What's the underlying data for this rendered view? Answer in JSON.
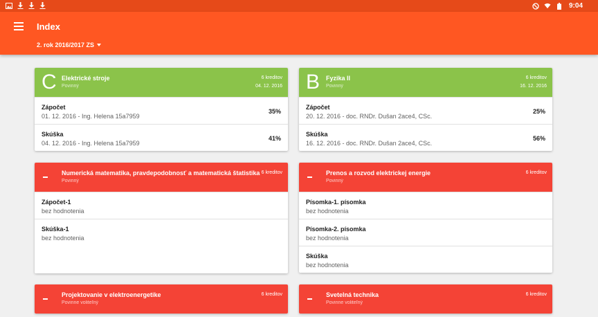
{
  "status": {
    "time": "9:04"
  },
  "app": {
    "title": "Index",
    "semester": "2. rok 2016/2017 ZS"
  },
  "cards": [
    {
      "grade": "C",
      "name": "Elektrické stroje",
      "type": "Povinný",
      "credits": "6 kreditov",
      "date": "04. 12. 2016",
      "rows": [
        {
          "title": "Zápočet",
          "sub": "01. 12. 2016 - Ing. Helena 15a7959",
          "pct": "35%"
        },
        {
          "title": "Skúška",
          "sub": "04. 12. 2016 - Ing. Helena 15a7959",
          "pct": "41%"
        }
      ]
    },
    {
      "grade": "B",
      "name": "Fyzika II",
      "type": "Povinný",
      "credits": "6 kreditov",
      "date": "16. 12. 2016",
      "rows": [
        {
          "title": "Zápočet",
          "sub": "20. 12. 2016 - doc. RNDr. Dušan 2ace4, CSc.",
          "pct": "25%"
        },
        {
          "title": "Skúška",
          "sub": "16. 12. 2016 - doc. RNDr. Dušan 2ace4, CSc.",
          "pct": "56%"
        }
      ]
    },
    {
      "name": "Numerická matematika, pravdepodobnosť a matematická štatistika",
      "type": "Povinný",
      "credits": "6 kreditov",
      "rows": [
        {
          "title": "Zápočet-1",
          "sub": "bez hodnotenia"
        },
        {
          "title": "Skúška-1",
          "sub": "bez hodnotenia"
        }
      ]
    },
    {
      "name": "Prenos a rozvod elektrickej energie",
      "type": "Povinný",
      "credits": "6 kreditov",
      "rows": [
        {
          "title": "Písomka-1. písomka",
          "sub": "bez hodnotenia"
        },
        {
          "title": "Písomka-2. písomka",
          "sub": "bez hodnotenia"
        },
        {
          "title": "Skúška",
          "sub": "bez hodnotenia"
        }
      ]
    },
    {
      "name": "Projektovanie v elektroenergetike",
      "type": "Povinne voliteľný",
      "credits": "6 kreditov"
    },
    {
      "name": "Svetelná technika",
      "type": "Povinne voliteľný",
      "credits": "6 kreditov"
    }
  ],
  "colors": {
    "status_bar": "#e64a19",
    "app_bar": "#ff5722",
    "passed": "#8bc34a",
    "pending": "#f44336"
  },
  "icons": [
    "image-icon",
    "download-icon",
    "download-icon",
    "download-icon",
    "block-icon",
    "wifi-icon",
    "battery-icon"
  ]
}
